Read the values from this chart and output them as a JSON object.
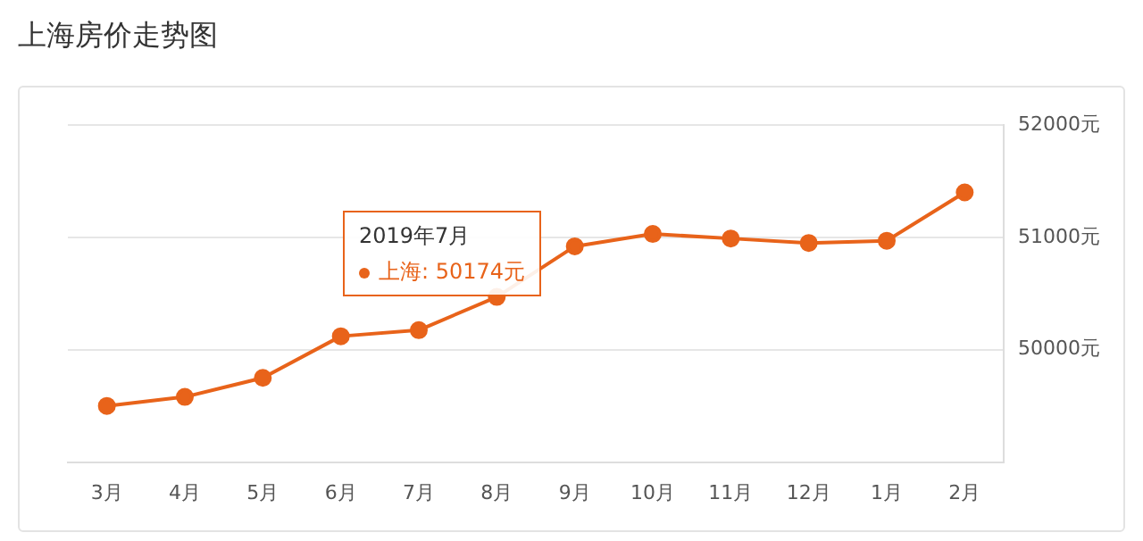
{
  "chart_data": {
    "type": "line",
    "title": "上海房价走势图",
    "categories": [
      "3月",
      "4月",
      "5月",
      "6月",
      "7月",
      "8月",
      "9月",
      "10月",
      "11月",
      "12月",
      "1月",
      "2月"
    ],
    "series": [
      {
        "color": "#e8631a",
        "values": [
          49500,
          49580,
          49750,
          50120,
          50174,
          50470,
          50920,
          51030,
          50990,
          50950,
          50970,
          51400
        ]
      }
    ],
    "ylim": [
      49000,
      52000
    ],
    "yticks": [
      {
        "value": 49000,
        "label": null
      },
      {
        "value": 50000,
        "label": "50000元"
      },
      {
        "value": 51000,
        "label": "51000元"
      },
      {
        "value": 52000,
        "label": "52000元"
      }
    ],
    "grid": "y",
    "legend": false,
    "marker": "circle",
    "line_style": "solid",
    "annotations": [
      "2019年7月",
      "上海:  50174元"
    ]
  }
}
